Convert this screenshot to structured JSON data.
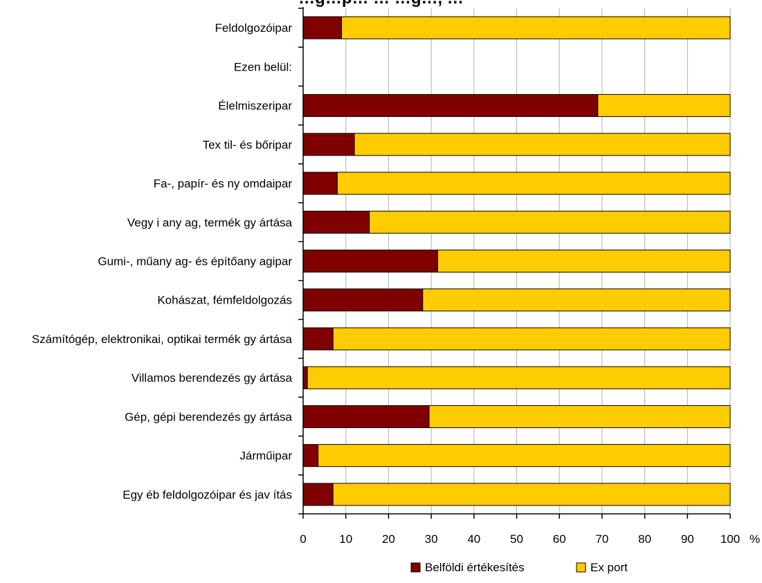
{
  "chart_data": {
    "type": "bar",
    "orientation": "horizontal",
    "stacked": true,
    "title": "…g…p… … …g…, …",
    "unit_label": "%",
    "xlim": [
      0,
      100
    ],
    "x_ticks": [
      "0",
      "10",
      "20",
      "30",
      "40",
      "50",
      "60",
      "70",
      "80",
      "90",
      "100"
    ],
    "grid": true,
    "legend_position": "bottom",
    "categories": [
      "Feldolgozóipar",
      "Ezen belül:",
      "Élelmiszeripar",
      "Tex til- és bőripar",
      "Fa-, papír- és ny omdaipar",
      "Vegy i any ag, termék gy ártása",
      "Gumi-, műany ag- és építőany agipar",
      "Kohászat, fémfeldolgozás",
      "Számítógép, elektronikai, optikai termék gy ártása",
      "Villamos berendezés gy ártása",
      "Gép, gépi berendezés gy ártása",
      "Járműipar",
      "Egy éb feldolgozóipar és jav ítás"
    ],
    "series": [
      {
        "name": "Belföldi értékesítés",
        "color": "#800000",
        "values": [
          9,
          null,
          69,
          12,
          8,
          15.5,
          31.5,
          28,
          7,
          1,
          29.5,
          3.5,
          7
        ]
      },
      {
        "name": "Ex port",
        "color": "#FFCC00",
        "values": [
          91,
          null,
          31,
          88,
          92,
          84.5,
          68.5,
          72,
          93,
          99,
          70.5,
          96.5,
          93
        ]
      }
    ]
  }
}
